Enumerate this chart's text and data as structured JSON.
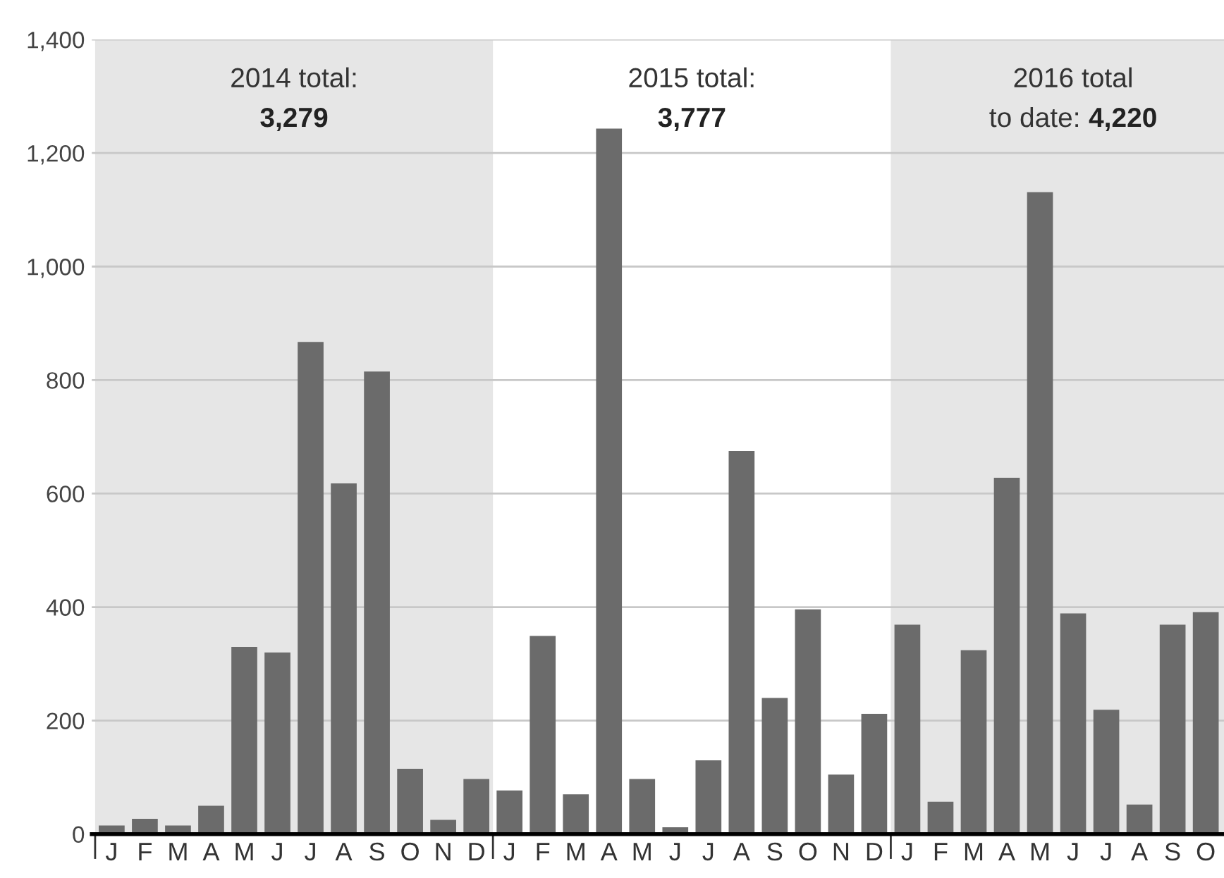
{
  "chart_data": {
    "type": "bar",
    "categories": [
      "J",
      "F",
      "M",
      "A",
      "M",
      "J",
      "J",
      "A",
      "S",
      "O",
      "N",
      "D",
      "J",
      "F",
      "M",
      "A",
      "M",
      "J",
      "J",
      "A",
      "S",
      "O",
      "N",
      "D",
      "J",
      "F",
      "M",
      "A",
      "M",
      "J",
      "J",
      "A",
      "S",
      "O"
    ],
    "values": [
      15,
      27,
      15,
      50,
      330,
      320,
      867,
      618,
      815,
      115,
      25,
      97,
      77,
      349,
      70,
      1243,
      97,
      12,
      130,
      675,
      240,
      396,
      105,
      212,
      369,
      57,
      324,
      628,
      1131,
      389,
      219,
      52,
      369,
      391
    ],
    "color": "#6b6b6b",
    "ylim": [
      0,
      1400
    ],
    "yticks": [
      {
        "value": 0,
        "label": "0"
      },
      {
        "value": 200,
        "label": "200"
      },
      {
        "value": 400,
        "label": "400"
      },
      {
        "value": 600,
        "label": "600"
      },
      {
        "value": 800,
        "label": "800"
      },
      {
        "value": 1000,
        "label": "1,000"
      },
      {
        "value": 1200,
        "label": "1,200"
      },
      {
        "value": 1400,
        "label": "1,400"
      }
    ],
    "grid": "y",
    "annotations": [
      "2014 total:",
      "3,279",
      "2015 total:",
      "3,777",
      "2016 total",
      "to date:",
      "4,220"
    ]
  }
}
